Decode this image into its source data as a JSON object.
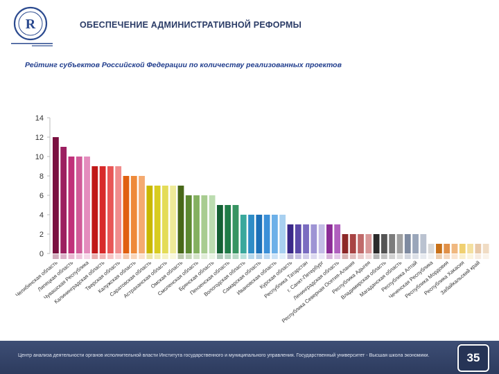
{
  "header": {
    "title": "ОБЕСПЕЧЕНИЕ АДМИНИСТРАТИВНОЙ РЕФОРМЫ",
    "logo_icon": "hse-logo-icon",
    "logo_caption": "НАЦИОНАЛЬНЫЙ ИССЛЕДОВАТЕЛЬСКИЙ УНИВЕРСИТЕТ"
  },
  "subtitle": "Рейтинг субъектов Российской Федерации по количеству реализованных проектов",
  "chart_data": {
    "type": "bar",
    "title": "Рейтинг субъектов Российской Федерации по количеству реализованных проектов",
    "ylim": [
      0,
      14
    ],
    "yticks": [
      0,
      2,
      4,
      6,
      8,
      10,
      12,
      14
    ],
    "values": [
      12,
      11,
      10,
      10,
      10,
      9,
      9,
      9,
      9,
      8,
      8,
      8,
      7,
      7,
      7,
      7,
      7,
      6,
      6,
      6,
      6,
      5,
      5,
      5,
      4,
      4,
      4,
      4,
      4,
      4,
      3,
      3,
      3,
      3,
      3,
      3,
      3,
      2,
      2,
      2,
      2,
      2,
      2,
      2,
      2,
      2,
      2,
      2,
      1,
      1,
      1,
      1,
      1,
      1,
      1,
      1
    ],
    "colors": [
      "#7a1040",
      "#9c1f60",
      "#c0307a",
      "#d05a98",
      "#e48cbd",
      "#c01818",
      "#d82a2a",
      "#e85656",
      "#f08c8c",
      "#e06010",
      "#ee8a3a",
      "#f4aa70",
      "#c8b800",
      "#d8cc20",
      "#e4dc58",
      "#eeea98",
      "#486818",
      "#5c8830",
      "#84b060",
      "#a8cc90",
      "#bcdcb0",
      "#146034",
      "#207c48",
      "#389462",
      "#3aa89c",
      "#2e8cc6",
      "#1c70b8",
      "#3c90d8",
      "#6cb0e8",
      "#a8d0f0",
      "#3a2888",
      "#5a48a8",
      "#7a6cc0",
      "#9e94d4",
      "#c4bde6",
      "#8c2c96",
      "#b060be",
      "#8c2828",
      "#a84444",
      "#c06a6a",
      "#d89898",
      "#2a2a2a",
      "#545454",
      "#7c7c7c",
      "#a0a0a0",
      "#7e8aa0",
      "#9aa6ba",
      "#bac2d0",
      "#d8d8d8",
      "#c87018",
      "#e09048",
      "#f0b880",
      "#f0d070",
      "#f4e0a0",
      "#e8c8a8",
      "#f0dcc4"
    ],
    "show_labels": [
      true,
      false,
      true,
      false,
      true,
      false,
      true,
      false,
      true,
      false,
      true,
      false,
      true,
      false,
      true,
      false,
      true,
      false,
      true,
      false,
      true,
      false,
      true,
      false,
      true,
      false,
      true,
      false,
      true,
      false,
      true,
      false,
      true,
      false,
      true,
      false,
      true,
      false,
      true,
      false,
      true,
      false,
      true,
      false,
      true,
      false,
      true,
      false,
      true,
      false,
      true,
      false,
      true,
      false,
      true,
      false
    ],
    "label_list": [
      "Челябинская область",
      "Липецкая область",
      "Чувашская Республика",
      "Калининградская область",
      "Тверская область",
      "Калужская область",
      "Саратовская область",
      "Астраханская область",
      "Омская область",
      "Смоленская область",
      "Брянская область",
      "Пензенская область",
      "Вологодская область",
      "Самарская область",
      "Ивановская область",
      "Курская область",
      "Республика Татарстан",
      "г. Санкт-Петербург",
      "Ленинградская область",
      "Республика Северная Осетия-Алания",
      "Республика Адыгея",
      "Владимирская область",
      "Магаданская область",
      "Республика Алтай",
      "Чеченская Республика",
      "Республика Мордовия",
      "Республика Хакасия",
      "Забайкальский край",
      "Нижегородская область",
      "Республика Бурятия",
      "Ярославская область"
    ]
  },
  "footer": {
    "text": "Центр анализа деятельности органов исполнительной власти Института государственного и муниципального управления. Государственный университет - Высшая школа экономики.",
    "page_number": "35"
  }
}
